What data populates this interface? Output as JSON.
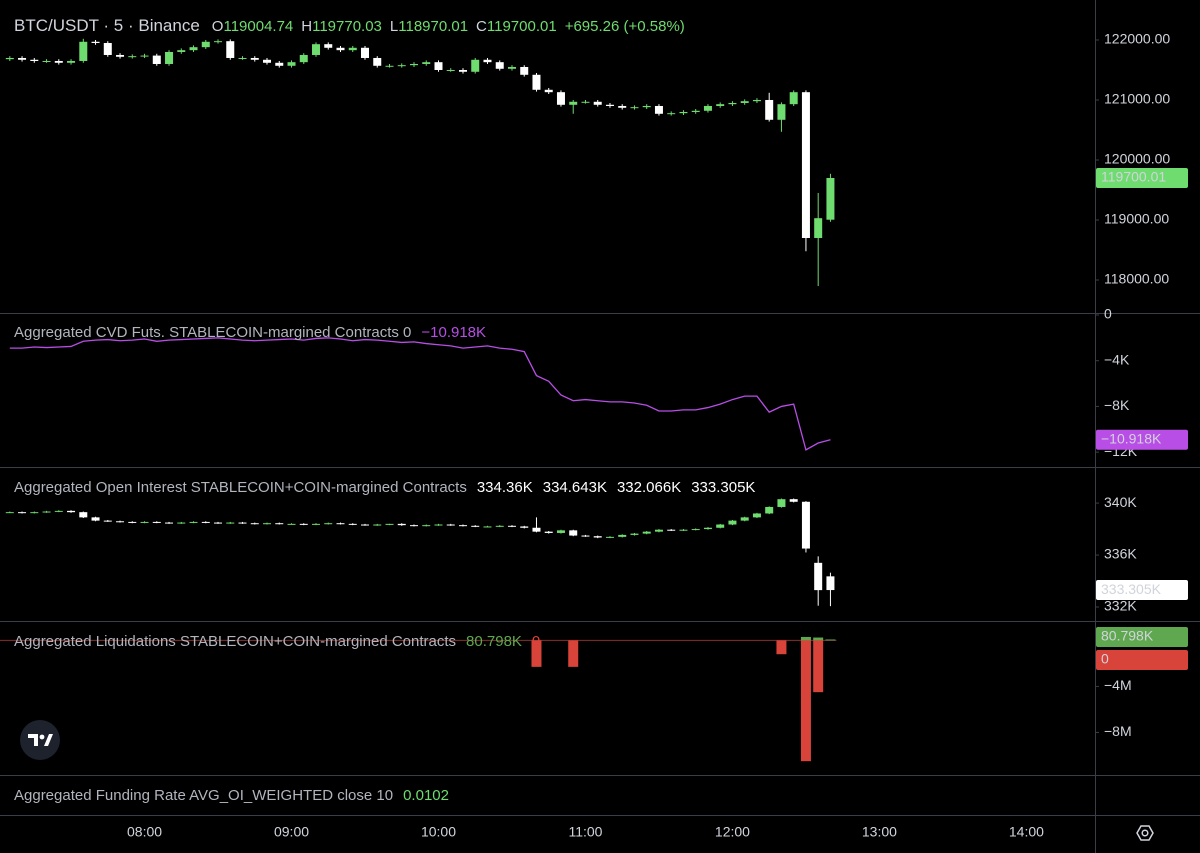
{
  "chart_data": [
    {
      "type": "candlestick",
      "title": "BTC/USDT · 5 · Binance",
      "ohlc_labels": [
        "O",
        "H",
        "L",
        "C"
      ],
      "ohlc": [
        119004.74,
        119770.03,
        118970.01,
        119700.01
      ],
      "change": "+695.26 (+0.58%)",
      "legend_color": "#6fdc6f",
      "up_color": "#6fdc6f",
      "down_color": "#ffffff",
      "x": [
        "07:05",
        "07:10",
        "07:15",
        "07:20",
        "07:25",
        "07:30",
        "07:35",
        "07:40",
        "07:45",
        "07:50",
        "07:55",
        "08:00",
        "08:05",
        "08:10",
        "08:15",
        "08:20",
        "08:25",
        "08:30",
        "08:35",
        "08:40",
        "08:45",
        "08:50",
        "08:55",
        "09:00",
        "09:05",
        "09:10",
        "09:15",
        "09:20",
        "09:25",
        "09:30",
        "09:35",
        "09:40",
        "09:45",
        "09:50",
        "09:55",
        "10:00",
        "10:05",
        "10:10",
        "10:15",
        "10:20",
        "10:25",
        "10:30",
        "10:35",
        "10:40",
        "10:45",
        "10:50",
        "10:55",
        "11:00",
        "11:05",
        "11:10",
        "11:15",
        "11:20",
        "11:25",
        "11:30",
        "11:35",
        "11:40",
        "11:45",
        "11:50",
        "11:55",
        "12:00",
        "12:05",
        "12:10",
        "12:15",
        "12:20",
        "12:25",
        "12:30",
        "12:35",
        "12:40"
      ],
      "open": [
        121680,
        121700,
        121670,
        121650,
        121650,
        121620,
        121650,
        121970,
        121950,
        121750,
        121720,
        121730,
        121740,
        121600,
        121800,
        121830,
        121880,
        121970,
        121980,
        121700,
        121700,
        121670,
        121620,
        121570,
        121630,
        121750,
        121930,
        121870,
        121830,
        121870,
        121700,
        121570,
        121570,
        121580,
        121600,
        121630,
        121500,
        121500,
        121470,
        121670,
        121630,
        121520,
        121550,
        121420,
        121170,
        121130,
        120920,
        120970,
        120970,
        120920,
        120900,
        120870,
        120880,
        120900,
        120770,
        120780,
        120800,
        120820,
        120900,
        120930,
        120950,
        120980,
        121000,
        120670,
        120930,
        121130,
        118700,
        119004.74
      ],
      "high": [
        121730,
        121730,
        121700,
        121680,
        121680,
        121680,
        122020,
        122000,
        121980,
        121780,
        121760,
        121770,
        121770,
        121830,
        121860,
        121910,
        122000,
        122010,
        122010,
        121730,
        121730,
        121700,
        121650,
        121660,
        121780,
        121960,
        121960,
        121900,
        121900,
        121900,
        121730,
        121600,
        121610,
        121630,
        121660,
        121660,
        121530,
        121530,
        121700,
        121700,
        121660,
        121580,
        121580,
        121450,
        121200,
        121160,
        121000,
        121000,
        121000,
        120950,
        120930,
        120910,
        120930,
        120930,
        120810,
        120830,
        120850,
        120930,
        120960,
        120980,
        121010,
        121030,
        121120,
        120960,
        121160,
        121160,
        119450,
        119770.03
      ],
      "low": [
        121650,
        121640,
        121620,
        121620,
        121590,
        121590,
        121620,
        121920,
        121720,
        121690,
        121690,
        121700,
        121570,
        121570,
        121770,
        121800,
        121850,
        121940,
        121670,
        121670,
        121640,
        121590,
        121540,
        121540,
        121600,
        121720,
        121840,
        121800,
        121800,
        121670,
        121540,
        121540,
        121540,
        121550,
        121570,
        121470,
        121470,
        121440,
        121440,
        121600,
        121490,
        121490,
        121390,
        121140,
        121100,
        120890,
        120770,
        120940,
        120890,
        120870,
        120840,
        120840,
        120850,
        120740,
        120740,
        120750,
        120770,
        120790,
        120870,
        120900,
        120920,
        120950,
        120640,
        120470,
        120900,
        118480,
        117900,
        118970.01
      ],
      "close": [
        121700,
        121670,
        121650,
        121650,
        121620,
        121650,
        121970,
        121950,
        121750,
        121720,
        121730,
        121740,
        121600,
        121800,
        121830,
        121880,
        121970,
        121980,
        121700,
        121700,
        121670,
        121620,
        121570,
        121630,
        121750,
        121930,
        121870,
        121830,
        121870,
        121700,
        121570,
        121570,
        121580,
        121600,
        121630,
        121500,
        121500,
        121470,
        121670,
        121630,
        121520,
        121550,
        121420,
        121170,
        121130,
        120920,
        120970,
        120970,
        120920,
        120900,
        120870,
        120880,
        120900,
        120770,
        120780,
        120800,
        120820,
        120900,
        120930,
        120950,
        120980,
        121000,
        120670,
        120930,
        121130,
        118700,
        119030,
        119700.01
      ],
      "xlim": [
        "07:01",
        "14:28"
      ],
      "xticks": [
        "08:00",
        "09:00",
        "10:00",
        "11:00",
        "12:00",
        "13:00",
        "14:00"
      ],
      "ylim": [
        117450,
        122533
      ],
      "yticks": [
        {
          "value": 118000,
          "label": "118000.00"
        },
        {
          "value": 119000,
          "label": "119000.00"
        },
        {
          "value": 120000,
          "label": "120000.00"
        },
        {
          "value": 121000,
          "label": "121000.00"
        },
        {
          "value": 122000,
          "label": "122000.00"
        }
      ]
    },
    {
      "type": "line",
      "title": "Aggregated CVD Futs. STABLECOIN-margined Contracts 0",
      "legend_values": [
        {
          "value": -10918,
          "label": "−10.918K"
        }
      ],
      "x": [
        "07:05",
        "07:10",
        "07:15",
        "07:20",
        "07:25",
        "07:30",
        "07:35",
        "07:40",
        "07:45",
        "07:50",
        "07:55",
        "08:00",
        "08:05",
        "08:10",
        "08:15",
        "08:20",
        "08:25",
        "08:30",
        "08:35",
        "08:40",
        "08:45",
        "08:50",
        "08:55",
        "09:00",
        "09:05",
        "09:10",
        "09:15",
        "09:20",
        "09:25",
        "09:30",
        "09:35",
        "09:40",
        "09:45",
        "09:50",
        "09:55",
        "10:00",
        "10:05",
        "10:10",
        "10:15",
        "10:20",
        "10:25",
        "10:30",
        "10:35",
        "10:40",
        "10:45",
        "10:50",
        "10:55",
        "11:00",
        "11:05",
        "11:10",
        "11:15",
        "11:20",
        "11:25",
        "11:30",
        "11:35",
        "11:40",
        "11:45",
        "11:50",
        "11:55",
        "12:00",
        "12:05",
        "12:10",
        "12:15",
        "12:20",
        "12:25",
        "12:30",
        "12:35",
        "12:40"
      ],
      "series": [
        {
          "color": "#b84ee6",
          "values": [
            -2900,
            -2900,
            -2800,
            -2850,
            -2800,
            -2750,
            -2300,
            -2200,
            -2150,
            -2250,
            -2200,
            -2100,
            -2300,
            -2200,
            -2150,
            -2100,
            -2050,
            -2000,
            -2100,
            -2200,
            -2250,
            -2200,
            -2150,
            -2100,
            -2200,
            -2050,
            -2000,
            -2100,
            -2250,
            -2150,
            -2200,
            -2300,
            -2400,
            -2350,
            -2500,
            -2600,
            -2700,
            -2900,
            -2800,
            -2700,
            -2900,
            -3000,
            -3200,
            -5300,
            -5800,
            -7000,
            -7500,
            -7400,
            -7500,
            -7600,
            -7600,
            -7700,
            -7900,
            -8400,
            -8400,
            -8300,
            -8300,
            -8100,
            -7800,
            -7400,
            -7100,
            -7100,
            -8500,
            -8000,
            -7800,
            -11800,
            -11200,
            -10918
          ]
        }
      ],
      "xlim": [
        "07:01",
        "14:28"
      ],
      "ylim": [
        -13300,
        0
      ],
      "yticks": [
        0,
        {
          "value": -4000,
          "label": "−4K"
        },
        {
          "value": -8000,
          "label": "−8K"
        },
        {
          "value": -12000,
          "label": "−12K"
        }
      ]
    },
    {
      "type": "candlestick",
      "title": "Aggregated Open Interest STABLECOIN+COIN-margined Contracts",
      "legend_values": [
        {
          "value": 334360,
          "label": "334.36K"
        },
        {
          "value": 334643,
          "label": "334.643K"
        },
        {
          "value": 332066,
          "label": "332.066K"
        },
        {
          "value": 333305,
          "label": "333.305K"
        }
      ],
      "legend_color": "#ffffff",
      "up_color": "#6fdc6f",
      "down_color": "#ffffff",
      "x": [
        "07:05",
        "07:10",
        "07:15",
        "07:20",
        "07:25",
        "07:30",
        "07:35",
        "07:40",
        "07:45",
        "07:50",
        "07:55",
        "08:00",
        "08:05",
        "08:10",
        "08:15",
        "08:20",
        "08:25",
        "08:30",
        "08:35",
        "08:40",
        "08:45",
        "08:50",
        "08:55",
        "09:00",
        "09:05",
        "09:10",
        "09:15",
        "09:20",
        "09:25",
        "09:30",
        "09:35",
        "09:40",
        "09:45",
        "09:50",
        "09:55",
        "10:00",
        "10:05",
        "10:10",
        "10:15",
        "10:20",
        "10:25",
        "10:30",
        "10:35",
        "10:40",
        "10:45",
        "10:50",
        "10:55",
        "11:00",
        "11:05",
        "11:10",
        "11:15",
        "11:20",
        "11:25",
        "11:30",
        "11:35",
        "11:40",
        "11:45",
        "11:50",
        "11:55",
        "12:00",
        "12:05",
        "12:10",
        "12:15",
        "12:20",
        "12:25",
        "12:30",
        "12:35",
        "12:40"
      ],
      "open": [
        339300,
        339300,
        339250,
        339300,
        339350,
        339400,
        339300,
        338900,
        338650,
        338600,
        338550,
        338500,
        338550,
        338500,
        338450,
        338500,
        338550,
        338500,
        338450,
        338500,
        338450,
        338400,
        338450,
        338400,
        338400,
        338350,
        338400,
        338450,
        338400,
        338350,
        338300,
        338350,
        338400,
        338300,
        338250,
        338300,
        338350,
        338300,
        338250,
        338200,
        338200,
        338250,
        338200,
        338100,
        337800,
        337700,
        337900,
        337500,
        337450,
        337350,
        337400,
        337550,
        337650,
        337800,
        337950,
        337900,
        337950,
        338000,
        338100,
        338350,
        338650,
        338900,
        339200,
        339700,
        340300,
        340100,
        335400,
        334360
      ],
      "high": [
        339350,
        339350,
        339350,
        339400,
        339450,
        339450,
        339350,
        338950,
        338700,
        338650,
        338600,
        338600,
        338600,
        338550,
        338550,
        338600,
        338600,
        338550,
        338550,
        338550,
        338500,
        338500,
        338500,
        338450,
        338450,
        338450,
        338500,
        338500,
        338450,
        338400,
        338400,
        338400,
        338450,
        338350,
        338350,
        338400,
        338400,
        338350,
        338300,
        338250,
        338300,
        338300,
        338250,
        338900,
        337850,
        337950,
        337950,
        337550,
        337500,
        337450,
        337600,
        337700,
        337850,
        338000,
        338000,
        338000,
        338050,
        338150,
        338400,
        338700,
        338950,
        339250,
        339750,
        340350,
        340350,
        340150,
        335900,
        334643
      ],
      "low": [
        339250,
        339200,
        339200,
        339250,
        339300,
        339250,
        338850,
        338600,
        338550,
        338500,
        338450,
        338450,
        338450,
        338400,
        338400,
        338450,
        338450,
        338400,
        338400,
        338400,
        338350,
        338350,
        338350,
        338350,
        338300,
        338300,
        338350,
        338350,
        338300,
        338250,
        338250,
        338300,
        338250,
        338200,
        338200,
        338250,
        338250,
        338200,
        338150,
        338150,
        338150,
        338150,
        338050,
        337750,
        337650,
        337650,
        337450,
        337400,
        337300,
        337300,
        337350,
        337500,
        337600,
        337750,
        337850,
        337850,
        337900,
        337950,
        338050,
        338300,
        338600,
        338850,
        339150,
        339650,
        340050,
        336200,
        332100,
        332066
      ],
      "close": [
        339300,
        339250,
        339300,
        339350,
        339400,
        339300,
        338900,
        338650,
        338600,
        338550,
        338500,
        338550,
        338500,
        338450,
        338500,
        338550,
        338500,
        338450,
        338500,
        338450,
        338400,
        338450,
        338400,
        338400,
        338350,
        338400,
        338450,
        338400,
        338350,
        338300,
        338350,
        338400,
        338300,
        338250,
        338300,
        338350,
        338300,
        338250,
        338200,
        338200,
        338250,
        338200,
        338100,
        337800,
        337700,
        337900,
        337500,
        337450,
        337350,
        337400,
        337550,
        337650,
        337800,
        337950,
        337900,
        337950,
        338000,
        338100,
        338350,
        338650,
        338900,
        339200,
        339700,
        340300,
        340100,
        336500,
        333300,
        333305
      ],
      "xlim": [
        "07:01",
        "14:28"
      ],
      "ylim": [
        331000,
        342700
      ],
      "yticks": [
        {
          "value": 332000,
          "label": "332K"
        },
        {
          "value": 336000,
          "label": "336K"
        },
        {
          "value": 340000,
          "label": "340K"
        }
      ]
    },
    {
      "type": "bar",
      "title": "Aggregated Liquidations STABLECOIN+COIN-margined Contracts",
      "legend_values": [
        {
          "value": 80798,
          "label": "80.798K"
        },
        0
      ],
      "x": [
        "10:40",
        "10:55",
        "12:20",
        "12:30",
        "12:35",
        "12:40"
      ],
      "series": [
        {
          "color": "#5fa84f",
          "values": [
            0,
            0,
            0,
            300000,
            250000,
            80798
          ]
        },
        {
          "color": "#d8433a",
          "values": [
            -2300000,
            -2300000,
            -1200000,
            -10500000,
            -4500000,
            0
          ]
        }
      ],
      "xlim": [
        "07:01",
        "14:28"
      ],
      "ylim": [
        -11700000,
        1600000
      ],
      "yticks": [
        {
          "value": -4000000,
          "label": "−4M"
        },
        {
          "value": -8000000,
          "label": "−8M"
        }
      ]
    },
    {
      "type": "indicator",
      "title": "Aggregated Funding Rate AVG_OI_WEIGHTED close 10",
      "legend_values": [
        0.0102
      ],
      "color": "#6fdc6f"
    }
  ]
}
